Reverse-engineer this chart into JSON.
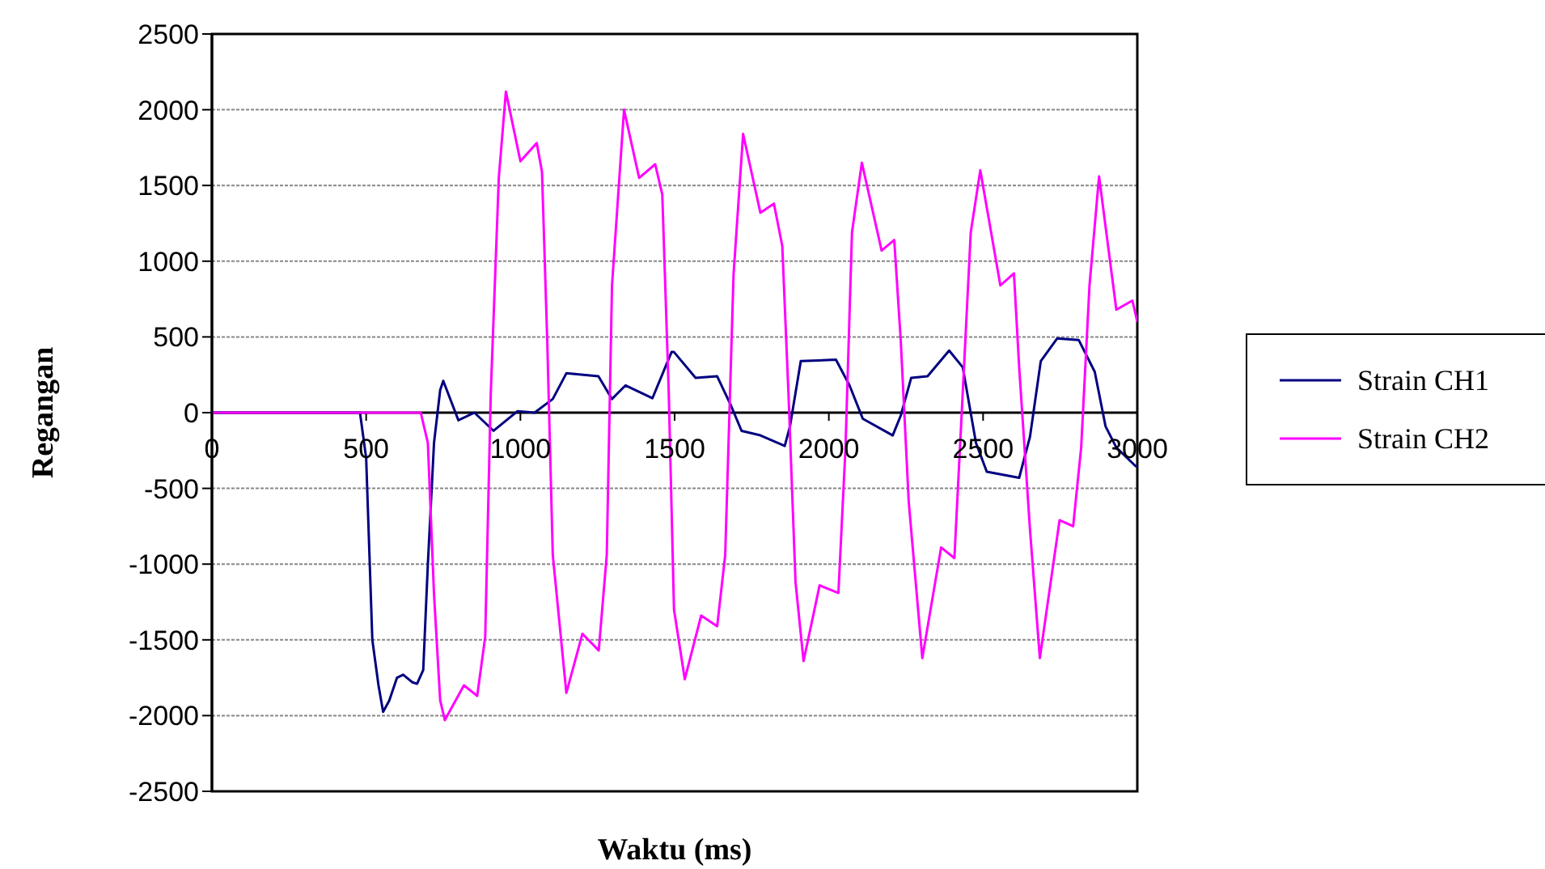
{
  "chart_data": {
    "type": "line",
    "xlabel": "Waktu (ms)",
    "ylabel": "Regangan",
    "xlim": [
      0,
      3000
    ],
    "xticks": [
      0,
      500,
      1000,
      1500,
      2000,
      2500,
      3000
    ],
    "ylim": [
      -2500,
      2500
    ],
    "yticks": [
      -2500,
      -2000,
      -1500,
      -1000,
      -500,
      0,
      500,
      1000,
      1500,
      2000,
      2500
    ],
    "grid": "y",
    "legend": "right",
    "marker": "none",
    "line_style": "solid",
    "series": [
      {
        "name": "Strain CH1",
        "color": "#000080",
        "x": [
          0,
          480,
          500,
          520,
          540,
          555,
          575,
          600,
          620,
          650,
          665,
          685,
          700,
          720,
          740,
          750,
          799,
          851,
          913,
          991,
          1046,
          1105,
          1149,
          1253,
          1297,
          1341,
          1428,
          1490,
          1498,
          1568,
          1638,
          1682,
          1717,
          1778,
          1857,
          1874,
          1909,
          2023,
          2067,
          2110,
          2207,
          2233,
          2267,
          2320,
          2390,
          2434,
          2477,
          2512,
          2617,
          2652,
          2687,
          2740,
          2810,
          2862,
          2897,
          2932,
          2993,
          3000
        ],
        "values": [
          0,
          0,
          -300,
          -1500,
          -1800,
          -1975,
          -1900,
          -1750,
          -1730,
          -1780,
          -1790,
          -1700,
          -1000,
          -200,
          150,
          210,
          -50,
          0,
          -120,
          10,
          0,
          90,
          260,
          240,
          90,
          180,
          95,
          400,
          400,
          230,
          240,
          50,
          -120,
          -150,
          -220,
          -90,
          340,
          350,
          180,
          -40,
          -150,
          -20,
          230,
          240,
          410,
          300,
          -200,
          -390,
          -430,
          -160,
          340,
          490,
          480,
          270,
          -90,
          -230,
          -350,
          -360
        ]
      },
      {
        "name": "Strain CH2",
        "color": "#ff00ff",
        "x": [
          0,
          677,
          700,
          720,
          740,
          755,
          817,
          860,
          886,
          904,
          930,
          953,
          1000,
          1053,
          1070,
          1087,
          1105,
          1149,
          1201,
          1254,
          1280,
          1297,
          1336,
          1385,
          1437,
          1460,
          1481,
          1498,
          1533,
          1586,
          1638,
          1664,
          1691,
          1722,
          1778,
          1822,
          1849,
          1869,
          1892,
          1918,
          1970,
          2031,
          2054,
          2075,
          2107,
          2171,
          2212,
          2233,
          2259,
          2303,
          2364,
          2407,
          2434,
          2460,
          2491,
          2556,
          2600,
          2617,
          2652,
          2684,
          2748,
          2792,
          2818,
          2845,
          2876,
          2932,
          2984,
          3000
        ],
        "values": [
          0,
          0,
          -200,
          -1200,
          -1900,
          -2030,
          -1800,
          -1870,
          -1480,
          130,
          1550,
          2120,
          1660,
          1780,
          1590,
          480,
          -940,
          -1850,
          -1460,
          -1570,
          -940,
          840,
          2000,
          1550,
          1640,
          1440,
          130,
          -1300,
          -1760,
          -1340,
          -1410,
          -940,
          910,
          1840,
          1320,
          1380,
          1100,
          130,
          -1120,
          -1640,
          -1140,
          -1190,
          -230,
          1190,
          1650,
          1070,
          1140,
          480,
          -590,
          -1620,
          -890,
          -960,
          130,
          1190,
          1600,
          840,
          920,
          300,
          -770,
          -1620,
          -710,
          -750,
          -230,
          840,
          1560,
          680,
          740,
          600
        ]
      }
    ]
  }
}
